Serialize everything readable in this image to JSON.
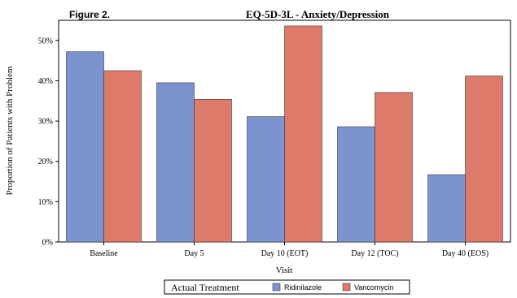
{
  "figure_label": "Figure 2.",
  "chart_data": {
    "type": "bar",
    "title": "EQ-5D-3L - Anxiety/Depression",
    "xlabel": "Visit",
    "ylabel": "Proportion of Patients with Problem",
    "categories": [
      "Baseline",
      "Day 5",
      "Day 10 (EOT)",
      "Day 12 (TOC)",
      "Day 40 (EOS)"
    ],
    "series": [
      {
        "name": "Ridinilazole",
        "color": "#7b93cf",
        "values": [
          47.2,
          39.5,
          31.1,
          28.6,
          16.7
        ]
      },
      {
        "name": "Vancomycin",
        "color": "#dd7a6a",
        "values": [
          42.5,
          35.4,
          53.6,
          37.1,
          41.2
        ]
      }
    ],
    "ylim": [
      0,
      55
    ],
    "yticks": [
      "0%",
      "10%",
      "20%",
      "30%",
      "40%",
      "50%"
    ],
    "grid": false,
    "legend": {
      "title": "Actual Treatment",
      "placement": "bottom"
    }
  }
}
